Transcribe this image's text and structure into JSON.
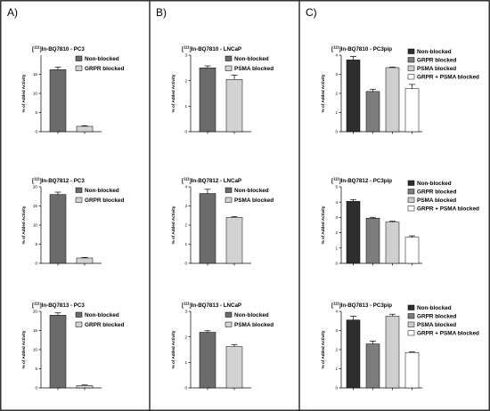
{
  "panels": [
    {
      "letter": "A)"
    },
    {
      "letter": "B)"
    },
    {
      "letter": "C)"
    }
  ],
  "colors": {
    "non_blocked_2": "#6b6b6b",
    "blocked_2": "#d2d2d2",
    "non_blocked_4": "#2e2e2e",
    "grpr_blocked_4": "#7d7d7d",
    "psma_blocked_4": "#cfcfcf",
    "both_blocked_4": "#ffffff"
  },
  "chart_data": [
    {
      "type": "bar",
      "panel": 0,
      "row": 0,
      "title_sup": "111",
      "title": "In-BQ7810 - PC3",
      "ylabel": "% of Added Activity",
      "ylim": [
        0,
        20
      ],
      "yticks": [
        "0",
        "5",
        "10",
        "15"
      ],
      "series": [
        {
          "name": "Non-blocked",
          "value": 16.2,
          "error": 0.7
        },
        {
          "name": "GRPR blocked",
          "value": 1.4,
          "error": 0.15
        }
      ]
    },
    {
      "type": "bar",
      "panel": 0,
      "row": 1,
      "title_sup": "111",
      "title": "In-BQ7812 - PC3",
      "ylabel": "% of Added Activity",
      "ylim": [
        0,
        20
      ],
      "yticks": [
        "0",
        "5",
        "10",
        "15",
        "20"
      ],
      "series": [
        {
          "name": "Non-blocked",
          "value": 18.0,
          "error": 0.6
        },
        {
          "name": "GRPR blocked",
          "value": 1.4,
          "error": 0.15
        }
      ]
    },
    {
      "type": "bar",
      "panel": 0,
      "row": 2,
      "title_sup": "111",
      "title": "In-BQ7813 - PC3",
      "ylabel": "% of Added Activity",
      "ylim": [
        0,
        20
      ],
      "yticks": [
        "0",
        "5",
        "10",
        "15",
        "20"
      ],
      "series": [
        {
          "name": "Non-blocked",
          "value": 19.0,
          "error": 0.6
        },
        {
          "name": "GRPR blocked",
          "value": 0.6,
          "error": 0.15
        }
      ]
    },
    {
      "type": "bar",
      "panel": 1,
      "row": 0,
      "title_sup": "111",
      "title": "In-BQ7810 - LNCaP",
      "ylabel": "% of Added Activity",
      "ylim": [
        0,
        3
      ],
      "yticks": [
        "0",
        "1",
        "2",
        "3"
      ],
      "series": [
        {
          "name": "Non-blocked",
          "value": 2.5,
          "error": 0.08
        },
        {
          "name": "PSMA blocked",
          "value": 2.05,
          "error": 0.17
        }
      ]
    },
    {
      "type": "bar",
      "panel": 1,
      "row": 1,
      "title_sup": "111",
      "title": "In-BQ7812 - LNCaP",
      "ylabel": "% of Added Activity",
      "ylim": [
        0,
        4
      ],
      "yticks": [
        "0",
        "1",
        "2",
        "3",
        "4"
      ],
      "series": [
        {
          "name": "Non-blocked",
          "value": 3.65,
          "error": 0.22
        },
        {
          "name": "PSMA blocked",
          "value": 2.4,
          "error": 0.05
        }
      ]
    },
    {
      "type": "bar",
      "panel": 1,
      "row": 2,
      "title_sup": "111",
      "title": "In-BQ7813 - LNCaP",
      "ylabel": "% of Added Activity",
      "ylim": [
        0,
        3
      ],
      "yticks": [
        "0",
        "1",
        "2",
        "3"
      ],
      "series": [
        {
          "name": "Non-blocked",
          "value": 2.18,
          "error": 0.06
        },
        {
          "name": "PSMA blocked",
          "value": 1.62,
          "error": 0.08
        }
      ]
    },
    {
      "type": "bar",
      "panel": 2,
      "row": 0,
      "title_sup": "111",
      "title": "In-BQ7810 - PC3pip",
      "ylabel": "% of Added Activity",
      "ylim": [
        0,
        4
      ],
      "yticks": [
        "0",
        "1",
        "2",
        "3",
        "4"
      ],
      "series": [
        {
          "name": "Non-blocked",
          "value": 3.75,
          "error": 0.18
        },
        {
          "name": "GRPR blocked",
          "value": 2.1,
          "error": 0.12
        },
        {
          "name": "PSMA blocked",
          "value": 3.35,
          "error": 0.03
        },
        {
          "name": "GRPR + PSMA blocked",
          "value": 2.25,
          "error": 0.22
        }
      ]
    },
    {
      "type": "bar",
      "panel": 2,
      "row": 1,
      "title_sup": "111",
      "title": "In-BQ7812 - PC3pip",
      "ylabel": "% of Added Activity",
      "ylim": [
        0,
        5
      ],
      "yticks": [
        "0",
        "1",
        "2",
        "3",
        "4",
        "5"
      ],
      "series": [
        {
          "name": "Non-blocked",
          "value": 4.05,
          "error": 0.12
        },
        {
          "name": "GRPR blocked",
          "value": 2.95,
          "error": 0.06
        },
        {
          "name": "PSMA blocked",
          "value": 2.7,
          "error": 0.05
        },
        {
          "name": "GRPR + PSMA blocked",
          "value": 1.7,
          "error": 0.1
        }
      ]
    },
    {
      "type": "bar",
      "panel": 2,
      "row": 2,
      "title_sup": "111",
      "title": "In-BQ7813 - PC3pip",
      "ylabel": "% of Added Activity",
      "ylim": [
        0,
        4
      ],
      "yticks": [
        "0",
        "1",
        "2",
        "3",
        "4"
      ],
      "series": [
        {
          "name": "Non-blocked",
          "value": 3.55,
          "error": 0.2
        },
        {
          "name": "GRPR blocked",
          "value": 2.3,
          "error": 0.15
        },
        {
          "name": "PSMA blocked",
          "value": 3.75,
          "error": 0.1
        },
        {
          "name": "GRPR + PSMA blocked",
          "value": 1.85,
          "error": 0.03
        }
      ]
    }
  ]
}
